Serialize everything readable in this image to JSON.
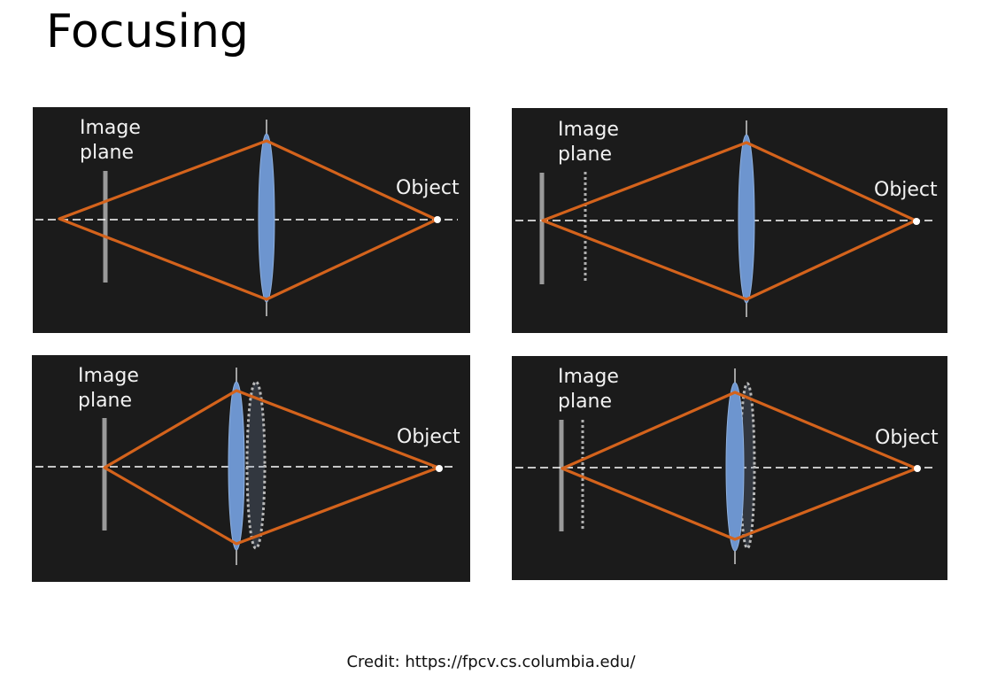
{
  "title": "Focusing",
  "credit": "Credit: https://fpcv.cs.columbia.edu/",
  "colors": {
    "panel_background": "#1b1b1b",
    "ray": "#d4631c",
    "lens": "#6d95cf",
    "image_plane": "#9a9a9a"
  },
  "panels": [
    {
      "image_plane_label_line1": "Image",
      "image_plane_label_line2": "plane",
      "object_label": "Object"
    },
    {
      "image_plane_label_line1": "Image",
      "image_plane_label_line2": "plane",
      "object_label": "Object"
    },
    {
      "image_plane_label_line1": "Image",
      "image_plane_label_line2": "plane",
      "object_label": "Object"
    },
    {
      "image_plane_label_line1": "Image",
      "image_plane_label_line2": "plane",
      "object_label": "Object"
    }
  ]
}
